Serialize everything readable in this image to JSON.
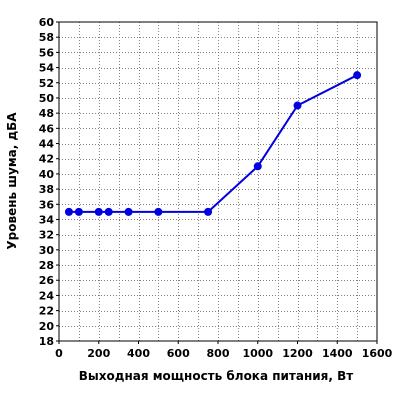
{
  "chart_data": {
    "type": "line",
    "title": "",
    "xlabel": "Выходная мощность блока питания, Вт",
    "ylabel": "Уровень шума, дБА",
    "xlim": [
      0,
      1600
    ],
    "ylim": [
      18,
      60
    ],
    "x_ticks": [
      0,
      200,
      400,
      600,
      800,
      1000,
      1200,
      1400,
      1600
    ],
    "y_ticks": [
      18,
      20,
      22,
      24,
      26,
      28,
      30,
      32,
      34,
      36,
      38,
      40,
      42,
      44,
      46,
      48,
      50,
      52,
      54,
      56,
      58,
      60
    ],
    "grid": true,
    "legend": "none",
    "series": [
      {
        "color": "#0000e0",
        "x": [
          50,
          100,
          200,
          250,
          350,
          500,
          750,
          1000,
          1200,
          1500
        ],
        "y": [
          35,
          35,
          35,
          35,
          35,
          35,
          35,
          41,
          49,
          53
        ]
      }
    ]
  }
}
